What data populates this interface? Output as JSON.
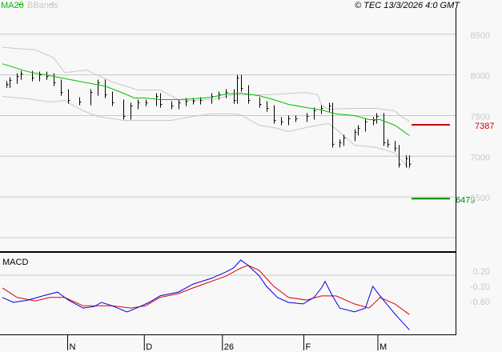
{
  "legend": {
    "ma_label": "MA20",
    "bb_label": "BBands",
    "ma_color": "#00c000",
    "bb_color": "#c8c8c8"
  },
  "copyright": "© TEC 13/3/2026 4:0 GMT",
  "macd_panel": {
    "title": "MACD"
  },
  "chart_data": [
    {
      "type": "line",
      "title": "",
      "price_axis": {
        "ticks": [
          "8500",
          "8000",
          "7500",
          "7000",
          "6500"
        ],
        "values": [
          8500,
          8000,
          7500,
          7000,
          6500
        ],
        "range": [
          5823,
          8724
        ],
        "grid": true
      },
      "x_ticks": [
        {
          "label": "N",
          "index": 17.8
        },
        {
          "label": "D",
          "index": 38.7
        },
        {
          "label": "26",
          "index": 60
        },
        {
          "label": "F",
          "index": 82.2
        },
        {
          "label": "M",
          "index": 102.4
        }
      ],
      "bars_close": [
        [
          1,
          7882
        ],
        [
          2,
          7931
        ],
        [
          4,
          7980
        ],
        [
          5,
          8010
        ],
        [
          8,
          7961
        ],
        [
          10,
          8000
        ],
        [
          12,
          7980
        ],
        [
          14,
          7902
        ],
        [
          16,
          7784
        ],
        [
          18,
          7686
        ],
        [
          21,
          7667
        ],
        [
          24,
          7784
        ],
        [
          26,
          7902
        ],
        [
          28,
          7755
        ],
        [
          30,
          7657
        ],
        [
          33,
          7490
        ],
        [
          35,
          7618
        ],
        [
          37,
          7657
        ],
        [
          39,
          7657
        ],
        [
          42,
          7735
        ],
        [
          43,
          7637
        ],
        [
          46,
          7618
        ],
        [
          48,
          7657
        ],
        [
          50,
          7676
        ],
        [
          52,
          7676
        ],
        [
          54,
          7686
        ],
        [
          57,
          7735
        ],
        [
          59,
          7755
        ],
        [
          61,
          7784
        ],
        [
          63,
          7686
        ],
        [
          64,
          7961
        ],
        [
          65,
          7833
        ],
        [
          67,
          7686
        ],
        [
          70,
          7637
        ],
        [
          72,
          7588
        ],
        [
          74,
          7441
        ],
        [
          76,
          7422
        ],
        [
          78,
          7461
        ],
        [
          80,
          7461
        ],
        [
          83,
          7490
        ],
        [
          85,
          7559
        ],
        [
          87,
          7588
        ],
        [
          89,
          7618
        ],
        [
          90,
          7147
        ],
        [
          92,
          7167
        ],
        [
          93,
          7225
        ],
        [
          96,
          7294
        ],
        [
          97,
          7343
        ],
        [
          99,
          7422
        ],
        [
          101,
          7441
        ],
        [
          102,
          7490
        ],
        [
          104,
          7167
        ],
        [
          105,
          7147
        ],
        [
          107,
          7098
        ],
        [
          108,
          6902
        ],
        [
          110,
          6971
        ],
        [
          111,
          6902
        ]
      ],
      "ma20": [
        [
          0,
          8137
        ],
        [
          7,
          8039
        ],
        [
          13,
          7990
        ],
        [
          22,
          7912
        ],
        [
          28,
          7863
        ],
        [
          33,
          7775
        ],
        [
          36,
          7716
        ],
        [
          39,
          7716
        ],
        [
          43,
          7696
        ],
        [
          48,
          7696
        ],
        [
          52,
          7706
        ],
        [
          57,
          7725
        ],
        [
          61,
          7765
        ],
        [
          65,
          7775
        ],
        [
          70,
          7745
        ],
        [
          74,
          7696
        ],
        [
          78,
          7637
        ],
        [
          83,
          7598
        ],
        [
          87,
          7569
        ],
        [
          91,
          7520
        ],
        [
          96,
          7500
        ],
        [
          100,
          7451
        ],
        [
          103,
          7451
        ],
        [
          107,
          7382
        ],
        [
          111,
          7255
        ]
      ],
      "bb_upper": [
        [
          0,
          8338
        ],
        [
          9,
          8309
        ],
        [
          14,
          8211
        ],
        [
          17,
          8029
        ],
        [
          23,
          8059
        ],
        [
          30,
          7912
        ],
        [
          37,
          7814
        ],
        [
          43,
          7814
        ],
        [
          48,
          7696
        ],
        [
          52,
          7686
        ],
        [
          57,
          7696
        ],
        [
          63,
          7755
        ],
        [
          72,
          7755
        ],
        [
          83,
          7784
        ],
        [
          86,
          7755
        ],
        [
          87,
          7627
        ],
        [
          89,
          7578
        ],
        [
          96,
          7588
        ],
        [
          102,
          7588
        ],
        [
          107,
          7559
        ],
        [
          109,
          7480
        ],
        [
          111,
          7431
        ]
      ],
      "bb_lower": [
        [
          0,
          7735
        ],
        [
          7,
          7706
        ],
        [
          13,
          7667
        ],
        [
          17,
          7686
        ],
        [
          22,
          7559
        ],
        [
          26,
          7490
        ],
        [
          33,
          7441
        ],
        [
          39,
          7441
        ],
        [
          46,
          7441
        ],
        [
          52,
          7490
        ],
        [
          57,
          7520
        ],
        [
          63,
          7520
        ],
        [
          65,
          7510
        ],
        [
          70,
          7382
        ],
        [
          74,
          7353
        ],
        [
          78,
          7304
        ],
        [
          83,
          7353
        ],
        [
          86,
          7382
        ],
        [
          89,
          7402
        ],
        [
          91,
          7333
        ],
        [
          96,
          7137
        ],
        [
          102,
          7108
        ],
        [
          107,
          7039
        ],
        [
          111,
          6843
        ]
      ],
      "levels": [
        {
          "label": "7387",
          "value": 7387,
          "color": "#cc0000"
        },
        {
          "label": "6479",
          "value": 6479,
          "color": "#008800"
        }
      ]
    },
    {
      "type": "line",
      "title": "MACD",
      "axis": {
        "ticks": [
          "0.20",
          "-0.20",
          "-0.60"
        ],
        "values": [
          0.2,
          -0.2,
          -0.6
        ],
        "range": [
          -1.46,
          0.68
        ]
      },
      "macd": {
        "color": "#0000dd",
        "points": [
          [
            0,
            -0.49
          ],
          [
            3,
            -0.62
          ],
          [
            7,
            -0.56
          ],
          [
            11,
            -0.45
          ],
          [
            15,
            -0.35
          ],
          [
            18,
            -0.56
          ],
          [
            22,
            -0.77
          ],
          [
            25,
            -0.73
          ],
          [
            27,
            -0.62
          ],
          [
            30,
            -0.71
          ],
          [
            34,
            -0.87
          ],
          [
            37,
            -0.75
          ],
          [
            40,
            -0.62
          ],
          [
            43,
            -0.45
          ],
          [
            48,
            -0.35
          ],
          [
            52,
            -0.14
          ],
          [
            57,
            0.01
          ],
          [
            61,
            0.18
          ],
          [
            63,
            0.28
          ],
          [
            65,
            0.49
          ],
          [
            67,
            0.35
          ],
          [
            70,
            0.08
          ],
          [
            72,
            -0.2
          ],
          [
            75,
            -0.49
          ],
          [
            78,
            -0.62
          ],
          [
            82,
            -0.66
          ],
          [
            85,
            -0.49
          ],
          [
            87,
            -0.24
          ],
          [
            88,
            -0.07
          ],
          [
            90,
            -0.45
          ],
          [
            92,
            -0.77
          ],
          [
            96,
            -0.87
          ],
          [
            99,
            -0.77
          ],
          [
            101,
            -0.2
          ],
          [
            103,
            -0.45
          ],
          [
            107,
            -0.92
          ],
          [
            109,
            -1.13
          ],
          [
            111,
            -1.34
          ]
        ]
      },
      "signal": {
        "color": "#dd0000",
        "points": [
          [
            0,
            -0.24
          ],
          [
            4,
            -0.49
          ],
          [
            9,
            -0.58
          ],
          [
            13,
            -0.49
          ],
          [
            17,
            -0.49
          ],
          [
            22,
            -0.71
          ],
          [
            26,
            -0.71
          ],
          [
            30,
            -0.71
          ],
          [
            35,
            -0.77
          ],
          [
            39,
            -0.71
          ],
          [
            43,
            -0.49
          ],
          [
            48,
            -0.39
          ],
          [
            52,
            -0.24
          ],
          [
            57,
            -0.07
          ],
          [
            61,
            0.07
          ],
          [
            65,
            0.28
          ],
          [
            67,
            0.35
          ],
          [
            70,
            0.22
          ],
          [
            74,
            -0.2
          ],
          [
            78,
            -0.49
          ],
          [
            83,
            -0.56
          ],
          [
            87,
            -0.45
          ],
          [
            91,
            -0.45
          ],
          [
            96,
            -0.66
          ],
          [
            100,
            -0.77
          ],
          [
            103,
            -0.49
          ],
          [
            107,
            -0.66
          ],
          [
            111,
            -0.94
          ]
        ]
      }
    }
  ]
}
